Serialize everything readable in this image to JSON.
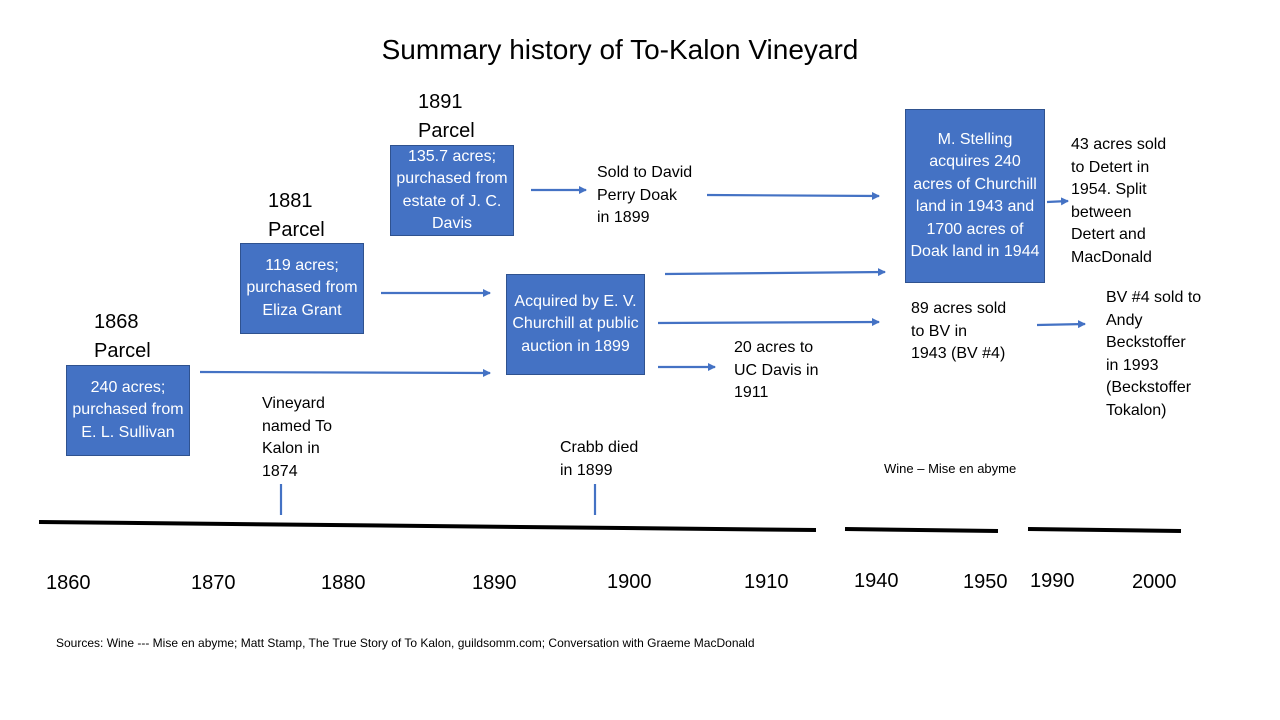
{
  "title": "Summary history of  To-Kalon Vineyard",
  "parcels": [
    {
      "year": "1868",
      "label": "Parcel",
      "box": "240 acres; purchased from E. L. Sullivan"
    },
    {
      "year": "1881",
      "label": "Parcel",
      "box": "119 acres; purchased from Eliza Grant"
    },
    {
      "year": "1891",
      "label": "Parcel",
      "box": "135.7 acres; purchased from estate of J. C. Davis"
    }
  ],
  "boxes": {
    "churchill": "Acquired by E. V. Churchill at public auction in 1899",
    "stelling": "M. Stelling acquires 240 acres of Churchill land in 1943 and 1700 acres of Doak land in 1944"
  },
  "notes": {
    "doak": "Sold to David\nPerry Doak\nin 1899",
    "ucdavis": "20 acres to\nUC Davis in\n1911",
    "bv": "89 acres sold\nto BV in\n1943 (BV #4)",
    "detert": "43 acres sold\nto Detert in\n1954. Split\nbetween\nDetert and\nMacDonald",
    "beckstoffer": "BV #4 sold to\nAndy\nBeckstoffer\nin 1993\n(Beckstoffer\nTokalon)",
    "named": "Vineyard\nnamed To\nKalon in\n1874",
    "crabb": "Crabb died\nin 1899",
    "wine": "Wine – Mise en abyme"
  },
  "years": [
    "1860",
    "1870",
    "1880",
    "1890",
    "1900",
    "1910",
    "1940",
    "1950",
    "1990",
    "2000"
  ],
  "sources": "Sources: Wine --- Mise en abyme; Matt Stamp, The True Story of To Kalon, guildsomm.com;  Conversation with Graeme MacDonald",
  "colors": {
    "box": "#4472c4",
    "arrow": "#4472c4",
    "timeline": "#000000"
  }
}
